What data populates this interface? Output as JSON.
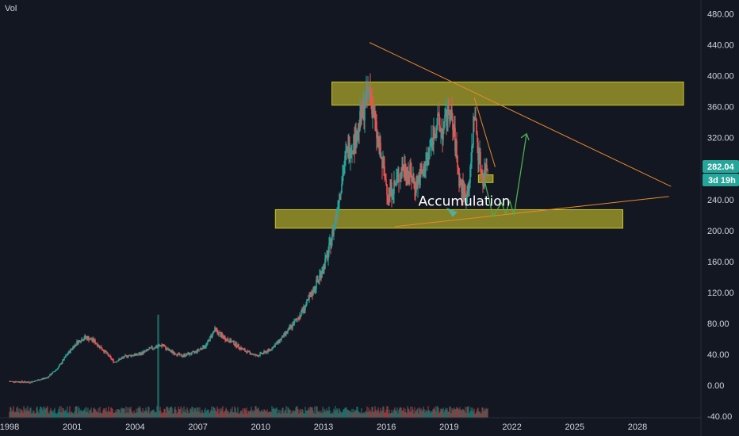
{
  "indicator_label": "Vol",
  "price_badge": "282.04",
  "countdown_badge": "3d 19h",
  "colors": {
    "background": "#131722",
    "up": "#26a69a",
    "down": "#ef5350",
    "zone": "#c9c22a",
    "trendline": "#e8882a",
    "projection": "#4caf50",
    "badge": "#26a69a",
    "axis_text": "#d1d4dc"
  },
  "chart_data": {
    "type": "candlestick",
    "title": "",
    "xlabel": "",
    "ylabel": "",
    "y_ticks": [
      "480.00",
      "440.00",
      "400.00",
      "360.00",
      "320.00",
      "280.00",
      "240.00",
      "200.00",
      "160.00",
      "120.00",
      "80.00",
      "40.00",
      "0.00",
      "-40.00"
    ],
    "x_ticks": [
      "1998",
      "2001",
      "2004",
      "2007",
      "2010",
      "2013",
      "2016",
      "2019",
      "2022",
      "2025",
      "2028"
    ],
    "ylim": [
      -40,
      480
    ],
    "xlim": [
      1998,
      2030
    ],
    "grid": false,
    "last_price": 282.04,
    "price_path": [
      [
        1998.0,
        5
      ],
      [
        1999.0,
        4
      ],
      [
        1999.8,
        10
      ],
      [
        2000.3,
        22
      ],
      [
        2000.7,
        38
      ],
      [
        2001.2,
        55
      ],
      [
        2001.6,
        62
      ],
      [
        2002.0,
        58
      ],
      [
        2002.5,
        45
      ],
      [
        2003.0,
        30
      ],
      [
        2003.6,
        38
      ],
      [
        2004.2,
        40
      ],
      [
        2004.8,
        48
      ],
      [
        2005.3,
        52
      ],
      [
        2005.6,
        45
      ],
      [
        2006.2,
        38
      ],
      [
        2006.8,
        42
      ],
      [
        2007.4,
        52
      ],
      [
        2007.8,
        72
      ],
      [
        2008.2,
        62
      ],
      [
        2008.7,
        55
      ],
      [
        2009.2,
        45
      ],
      [
        2009.8,
        38
      ],
      [
        2010.4,
        45
      ],
      [
        2010.8,
        55
      ],
      [
        2011.3,
        70
      ],
      [
        2011.8,
        88
      ],
      [
        2012.3,
        110
      ],
      [
        2012.8,
        140
      ],
      [
        2013.2,
        168
      ],
      [
        2013.5,
        205
      ],
      [
        2013.8,
        255
      ],
      [
        2014.1,
        300
      ],
      [
        2014.5,
        318
      ],
      [
        2014.9,
        355
      ],
      [
        2015.2,
        385
      ],
      [
        2015.5,
        330
      ],
      [
        2015.8,
        285
      ],
      [
        2016.1,
        248
      ],
      [
        2016.4,
        258
      ],
      [
        2016.8,
        282
      ],
      [
        2017.1,
        275
      ],
      [
        2017.4,
        258
      ],
      [
        2017.8,
        278
      ],
      [
        2018.1,
        308
      ],
      [
        2018.4,
        342
      ],
      [
        2018.7,
        325
      ],
      [
        2019.0,
        360
      ],
      [
        2019.3,
        312
      ],
      [
        2019.5,
        262
      ],
      [
        2019.8,
        242
      ],
      [
        2020.0,
        268
      ],
      [
        2020.2,
        355
      ],
      [
        2020.4,
        300
      ],
      [
        2020.6,
        268
      ],
      [
        2020.8,
        282.04
      ]
    ],
    "volume": "low flat histogram from 1998 to 2020 with a single spike near 2005",
    "annotations": [
      {
        "type": "zone",
        "x0": 2013.4,
        "x1": 2030.2,
        "y0": 362,
        "y1": 392
      },
      {
        "type": "zone",
        "x0": 2010.7,
        "x1": 2027.3,
        "y0": 203,
        "y1": 227
      },
      {
        "type": "zone",
        "x0": 2020.4,
        "x1": 2021.1,
        "y0": 262,
        "y1": 272
      },
      {
        "type": "trendline",
        "x0": 2015.2,
        "y0": 443,
        "x1": 2029.6,
        "y1": 257
      },
      {
        "type": "trendline",
        "x0": 2016.4,
        "y0": 205,
        "x1": 2029.5,
        "y1": 244
      },
      {
        "type": "trendline",
        "x0": 2020.2,
        "y0": 372,
        "x1": 2021.2,
        "y1": 282
      },
      {
        "type": "label",
        "x": 2019.8,
        "y": 238,
        "text": "Accumulation"
      },
      {
        "type": "projection",
        "points": [
          [
            2020.6,
            275
          ],
          [
            2021.1,
            218
          ],
          [
            2021.5,
            236
          ],
          [
            2021.7,
            222
          ],
          [
            2021.9,
            238
          ],
          [
            2022.1,
            220
          ],
          [
            2022.7,
            325
          ]
        ]
      }
    ],
    "accumulation_label": "Accumulation"
  }
}
